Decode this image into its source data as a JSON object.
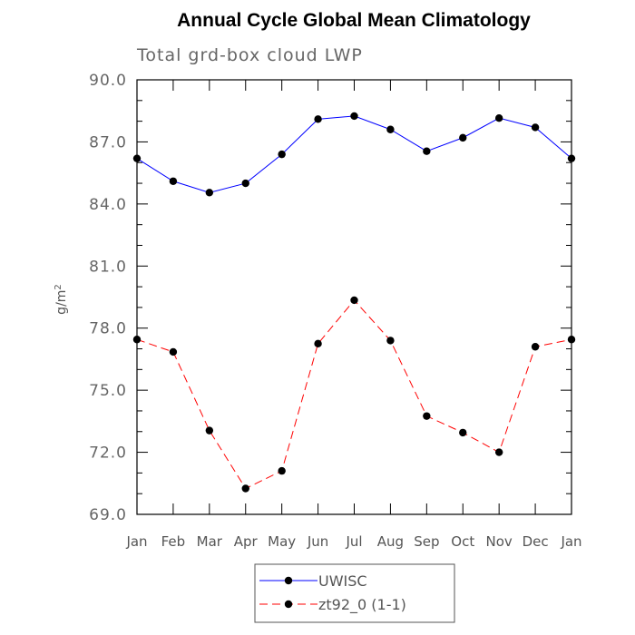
{
  "chart_data": {
    "type": "line",
    "title": "Annual Cycle Global Mean Climatology",
    "subtitle": "Total grd-box cloud LWP",
    "xlabel": "",
    "ylabel": "g/m",
    "ylabel_sup": "2",
    "categories": [
      "Jan",
      "Feb",
      "Mar",
      "Apr",
      "May",
      "Jun",
      "Jul",
      "Aug",
      "Sep",
      "Oct",
      "Nov",
      "Dec",
      "Jan"
    ],
    "ylim": [
      69.0,
      90.0
    ],
    "yticks": [
      69.0,
      72.0,
      75.0,
      78.0,
      81.0,
      84.0,
      87.0,
      90.0
    ],
    "ytick_labels": [
      "69.0",
      "72.0",
      "75.0",
      "78.0",
      "81.0",
      "84.0",
      "87.0",
      "90.0"
    ],
    "series": [
      {
        "name": "UWISC",
        "color": "#0000ff",
        "dash": "solid",
        "values": [
          86.2,
          85.1,
          84.55,
          85.0,
          86.4,
          88.1,
          88.25,
          87.6,
          86.55,
          87.2,
          88.15,
          87.7,
          86.2
        ]
      },
      {
        "name": "zt92_0 (1-1)",
        "color": "#ff0000",
        "dash": "dashed",
        "values": [
          77.45,
          76.85,
          73.05,
          70.25,
          71.1,
          77.25,
          79.35,
          77.4,
          73.75,
          72.95,
          72.0,
          77.1,
          77.45
        ]
      }
    ],
    "legend_position": "bottom-center"
  }
}
